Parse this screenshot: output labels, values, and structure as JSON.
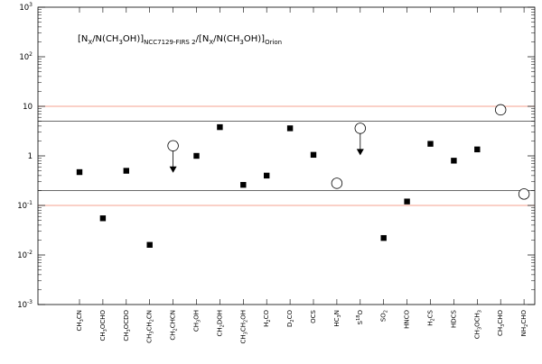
{
  "chart_data": {
    "type": "scatter",
    "title": "[N_X/N(CH_3OH)]_NCC7129-FIRS 2/[N_X/N(CH_3OH)]_Orion",
    "title_parts": [
      {
        "t": "[N",
        "sub": false
      },
      {
        "t": "X",
        "sub": true
      },
      {
        "t": "/N(CH",
        "sub": false
      },
      {
        "t": "3",
        "sub": true
      },
      {
        "t": "OH)]",
        "sub": false
      },
      {
        "t": "NCC7129-FIRS 2",
        "sub": true
      },
      {
        "t": "/[N",
        "sub": false
      },
      {
        "t": "X",
        "sub": true
      },
      {
        "t": "/N(CH",
        "sub": false
      },
      {
        "t": "3",
        "sub": true
      },
      {
        "t": "OH)]",
        "sub": false
      },
      {
        "t": "Orion",
        "sub": true
      }
    ],
    "y_scale": "log",
    "ylim": [
      0.001,
      1000
    ],
    "y_ticks": [
      {
        "value": 0.001,
        "base": "10",
        "exp": "-3"
      },
      {
        "value": 0.01,
        "base": "10",
        "exp": "-2"
      },
      {
        "value": 0.1,
        "base": "10",
        "exp": "-1"
      },
      {
        "value": 1,
        "base": "1",
        "exp": ""
      },
      {
        "value": 10,
        "base": "10",
        "exp": ""
      },
      {
        "value": 100,
        "base": "10",
        "exp": "2"
      },
      {
        "value": 1000,
        "base": "10",
        "exp": "3"
      }
    ],
    "xlabel": "",
    "ylabel": "",
    "grid": false,
    "reference_lines": [
      {
        "value": 10,
        "color": "#f4a18f"
      },
      {
        "value": 5,
        "color": "#555555"
      },
      {
        "value": 0.2,
        "color": "#555555"
      },
      {
        "value": 0.1,
        "color": "#f4a18f"
      }
    ],
    "points": [
      {
        "label": "CH3CN",
        "label_parts": [
          {
            "t": "CH",
            "sub": false
          },
          {
            "t": "3",
            "sub": true
          },
          {
            "t": "CN",
            "sub": false
          }
        ],
        "y": 0.47,
        "marker": "square"
      },
      {
        "label": "CH3OCHO",
        "label_parts": [
          {
            "t": "CH",
            "sub": false
          },
          {
            "t": "3",
            "sub": true
          },
          {
            "t": "OCHO",
            "sub": false
          }
        ],
        "y": 0.055,
        "marker": "square"
      },
      {
        "label": "CH3OCDO",
        "label_parts": [
          {
            "t": "CH",
            "sub": false
          },
          {
            "t": "3",
            "sub": true
          },
          {
            "t": "OCDO",
            "sub": false
          }
        ],
        "y": 0.5,
        "marker": "square"
      },
      {
        "label": "CH3CH2CN",
        "label_parts": [
          {
            "t": "CH",
            "sub": false
          },
          {
            "t": "3",
            "sub": true
          },
          {
            "t": "CH",
            "sub": false
          },
          {
            "t": "2",
            "sub": true
          },
          {
            "t": "CN",
            "sub": false
          }
        ],
        "y": 0.016,
        "marker": "square"
      },
      {
        "label": "CH2CHCN",
        "label_parts": [
          {
            "t": "CH",
            "sub": false
          },
          {
            "t": "2",
            "sub": true
          },
          {
            "t": "CHCN",
            "sub": false
          }
        ],
        "y": 1.6,
        "marker": "circle",
        "upper_limit": true
      },
      {
        "label": "CH3OH",
        "label_parts": [
          {
            "t": "CH",
            "sub": false
          },
          {
            "t": "3",
            "sub": true
          },
          {
            "t": "OH",
            "sub": false
          }
        ],
        "y": 1.0,
        "marker": "square"
      },
      {
        "label": "CH2DOH",
        "label_parts": [
          {
            "t": "CH",
            "sub": false
          },
          {
            "t": "2",
            "sub": true
          },
          {
            "t": "DOH",
            "sub": false
          }
        ],
        "y": 3.8,
        "marker": "square"
      },
      {
        "label": "CH3CH2OH",
        "label_parts": [
          {
            "t": "CH",
            "sub": false
          },
          {
            "t": "3",
            "sub": true
          },
          {
            "t": "CH",
            "sub": false
          },
          {
            "t": "2",
            "sub": true
          },
          {
            "t": "OH",
            "sub": false
          }
        ],
        "y": 0.26,
        "marker": "square"
      },
      {
        "label": "H2CO",
        "label_parts": [
          {
            "t": "H",
            "sub": false
          },
          {
            "t": "2",
            "sub": true
          },
          {
            "t": "CO",
            "sub": false
          }
        ],
        "y": 0.4,
        "marker": "square"
      },
      {
        "label": "D2CO",
        "label_parts": [
          {
            "t": "D",
            "sub": false
          },
          {
            "t": "2",
            "sub": true
          },
          {
            "t": "CO",
            "sub": false
          }
        ],
        "y": 3.6,
        "marker": "square"
      },
      {
        "label": "OCS",
        "label_parts": [
          {
            "t": "OCS",
            "sub": false
          }
        ],
        "y": 1.05,
        "marker": "square"
      },
      {
        "label": "HC3N",
        "label_parts": [
          {
            "t": "HC",
            "sub": false
          },
          {
            "t": "3",
            "sub": true
          },
          {
            "t": "N",
            "sub": false
          }
        ],
        "y": 0.28,
        "marker": "circle"
      },
      {
        "label": "S18O",
        "label_parts": [
          {
            "t": "S",
            "sub": false
          },
          {
            "t": "18",
            "sup": true
          },
          {
            "t": "O",
            "sub": false
          }
        ],
        "y": 3.6,
        "marker": "circle",
        "upper_limit": true
      },
      {
        "label": "SO2",
        "label_parts": [
          {
            "t": "SO",
            "sub": false
          },
          {
            "t": "2",
            "sub": true
          }
        ],
        "y": 0.022,
        "marker": "square"
      },
      {
        "label": "HNCO",
        "label_parts": [
          {
            "t": "HNCO",
            "sub": false
          }
        ],
        "y": 0.12,
        "marker": "square"
      },
      {
        "label": "H2CS",
        "label_parts": [
          {
            "t": "H",
            "sub": false
          },
          {
            "t": "2",
            "sub": true
          },
          {
            "t": "CS",
            "sub": false
          }
        ],
        "y": 1.75,
        "marker": "square"
      },
      {
        "label": "HDCS",
        "label_parts": [
          {
            "t": "HDCS",
            "sub": false
          }
        ],
        "y": 0.8,
        "marker": "square"
      },
      {
        "label": "CH3OCH3",
        "label_parts": [
          {
            "t": "CH",
            "sub": false
          },
          {
            "t": "3",
            "sub": true
          },
          {
            "t": "OCH",
            "sub": false
          },
          {
            "t": "3",
            "sub": true
          }
        ],
        "y": 1.35,
        "marker": "square"
      },
      {
        "label": "CH3CHO",
        "label_parts": [
          {
            "t": "CH",
            "sub": false
          },
          {
            "t": "3",
            "sub": true
          },
          {
            "t": "CHO",
            "sub": false
          }
        ],
        "y": 8.5,
        "marker": "circle"
      },
      {
        "label": "NH2CHO",
        "label_parts": [
          {
            "t": "NH",
            "sub": false
          },
          {
            "t": "2",
            "sub": true
          },
          {
            "t": "CHO",
            "sub": false
          }
        ],
        "y": 0.17,
        "marker": "circle"
      }
    ]
  }
}
